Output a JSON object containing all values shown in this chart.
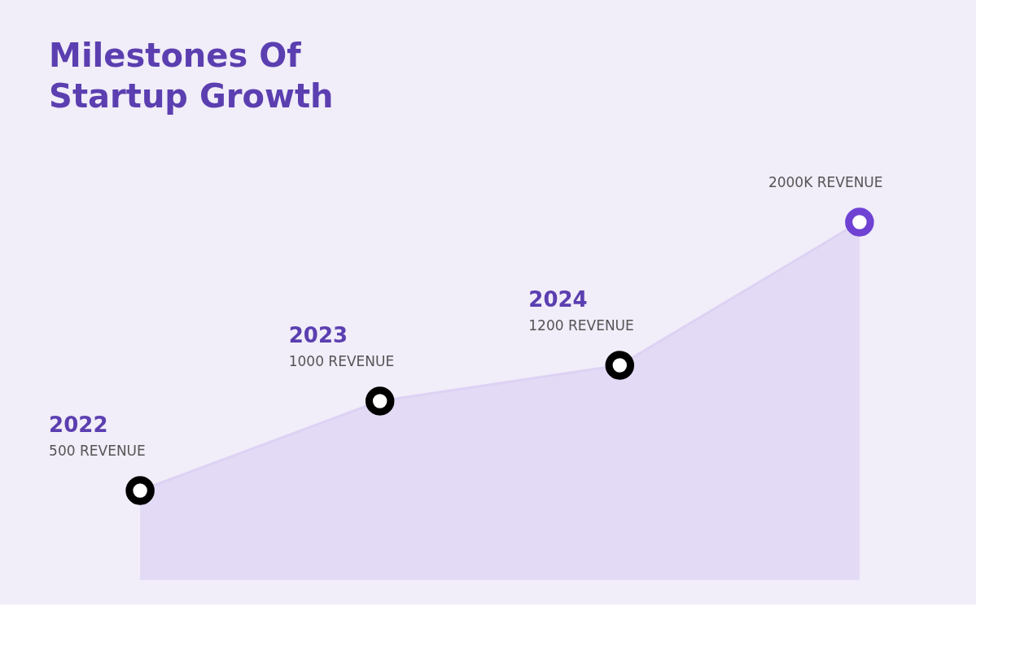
{
  "chart_data": {
    "type": "area",
    "title": "Milestones Of Startup Growth",
    "categories": [
      "2022",
      "2023",
      "2024",
      null
    ],
    "series": [
      {
        "color": "#ddd2f4",
        "values": [
          500,
          1000,
          1200,
          2000
        ],
        "colors": [
          "#000000",
          "#000000",
          "#000000",
          "#6f42d4"
        ],
        "value_labels": [
          "500 REVENUE",
          "1000 REVENUE",
          "1200 REVENUE",
          "2000K REVENUE"
        ]
      }
    ],
    "marker": "circle"
  }
}
